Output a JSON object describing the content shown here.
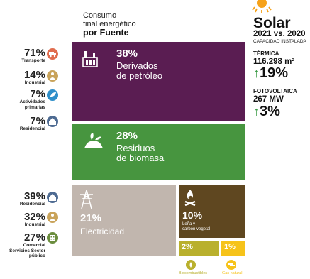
{
  "title": {
    "line1": "Consumo",
    "line2": "final energético",
    "line3": "por Fuente"
  },
  "chart_data": {
    "type": "treemap",
    "title": "Consumo final energético por Fuente",
    "segments": [
      {
        "label": "Derivados de petróleo",
        "value": 38,
        "value_label": "38%",
        "color": "#5a1d52"
      },
      {
        "label": "Residuos de biomasa",
        "value": 28,
        "value_label": "28%",
        "color": "#47953f"
      },
      {
        "label": "Electricidad",
        "value": 21,
        "value_label": "21%",
        "color": "#c1b6ae"
      },
      {
        "label": "Leña y carbón vegetal",
        "value": 10,
        "value_label": "10%",
        "color": "#5f4720"
      },
      {
        "label": "Biocombustibles",
        "value": 2,
        "value_label": "2%",
        "color": "#b9b02d"
      },
      {
        "label": "Gas natural",
        "value": 1,
        "value_label": "1%",
        "color": "#f6c31a"
      }
    ],
    "breakdowns": {
      "petroleo": [
        {
          "value": "71%",
          "sector": "Transporte",
          "icon": "truck-icon",
          "color": "#e06c4e"
        },
        {
          "value": "14%",
          "sector": "Industrial",
          "icon": "factory-worker-icon",
          "color": "#c9a35a"
        },
        {
          "value": "7%",
          "sector": "Actividades primarias",
          "icon": "leaf-hand-icon",
          "color": "#2f8fc9"
        },
        {
          "value": "7%",
          "sector": "Residencial",
          "icon": "house-icon",
          "color": "#4e6b92"
        }
      ],
      "electricidad": [
        {
          "value": "39%",
          "sector": "Residencial",
          "icon": "house-icon",
          "color": "#4e6b92"
        },
        {
          "value": "32%",
          "sector": "Industrial",
          "icon": "factory-worker-icon",
          "color": "#c9a35a"
        },
        {
          "value": "27%",
          "sector": "Comercial Servicios Sector público",
          "icon": "building-icon",
          "color": "#6b8d3e"
        }
      ]
    }
  },
  "segment_labels": {
    "petroleo": {
      "line1": "Derivados",
      "line2": "de petróleo"
    },
    "biomasa": {
      "line1": "Residuos",
      "line2": "de biomasa"
    },
    "electricidad": {
      "line1": "Electricidad"
    },
    "lena": {
      "line1": "Leña y",
      "line2": "carbón vegetal"
    }
  },
  "solar": {
    "title": "Solar",
    "subtitle": "2021 vs. 2020",
    "caption": "CAPACIDAD INSTALADA",
    "termica": {
      "heading": "TÉRMICA",
      "value": "116.298 m²",
      "change": "19%"
    },
    "fotovoltaica": {
      "heading": "FOTOVOLTAICA",
      "value": "267 MW",
      "change": "3%"
    }
  },
  "colors": {
    "petroleo": "#5a1d52",
    "biomasa": "#47953f",
    "electricidad": "#c1b6ae",
    "lena": "#5f4720",
    "biocombustibles": "#b9b02d",
    "gas_natural": "#f6c31a",
    "up_arrow": "#3a9a45",
    "sun": "#f6a21a"
  }
}
